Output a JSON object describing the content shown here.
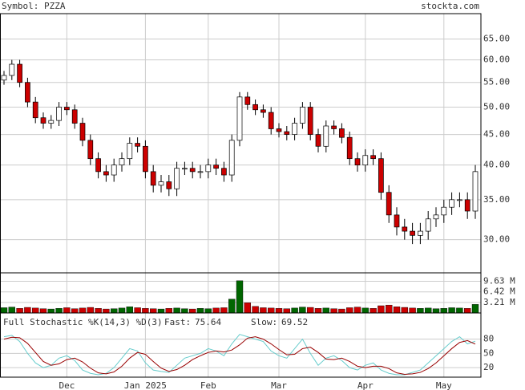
{
  "header": {
    "symbol": "Symbol: PZZA",
    "site": "stockta.com"
  },
  "chart_data": [
    {
      "type": "candlestick",
      "log": true,
      "grid": true,
      "up_color": "#ffffff",
      "down_color": "#cc0000",
      "categories": [
        null,
        null,
        null,
        null,
        null,
        null,
        null,
        null,
        "Dec",
        null,
        null,
        null,
        null,
        null,
        null,
        null,
        null,
        null,
        "Jan 2025",
        null,
        null,
        null,
        null,
        null,
        null,
        null,
        "Feb",
        null,
        null,
        null,
        null,
        null,
        null,
        null,
        null,
        "Mar",
        null,
        null,
        null,
        null,
        null,
        null,
        null,
        null,
        null,
        null,
        "Apr",
        null,
        null,
        null,
        null,
        null,
        null,
        null,
        null,
        null,
        "May",
        null,
        null,
        null,
        null
      ],
      "open": [
        55.5,
        56.5,
        59,
        55,
        51,
        48,
        47,
        47.5,
        50,
        49.5,
        47,
        44,
        41,
        39,
        38.5,
        40,
        41,
        43.5,
        43,
        39,
        37,
        37.5,
        36.5,
        39.5,
        39.5,
        39,
        39,
        40,
        39.5,
        38.5,
        44,
        52,
        50.5,
        49.5,
        49,
        46,
        45.5,
        45,
        47,
        50,
        45,
        43,
        46.5,
        46,
        44.5,
        41,
        40,
        41.5,
        41,
        36,
        33,
        31.5,
        31,
        30.5,
        31,
        32.5,
        33,
        34,
        35,
        35,
        33.5
      ],
      "high": [
        57.5,
        60,
        60,
        56,
        52,
        49,
        48.5,
        51,
        51,
        50.5,
        48,
        45,
        42,
        40,
        41,
        42,
        44.5,
        44.5,
        44,
        40,
        38.5,
        38.5,
        40.5,
        40.5,
        40.5,
        40,
        41,
        41,
        40.5,
        45,
        53,
        53,
        51.5,
        50.5,
        50,
        47,
        46.5,
        48,
        51,
        51,
        46,
        47.5,
        47.5,
        47,
        45.5,
        42,
        42.5,
        42.5,
        42,
        37,
        34,
        32.5,
        32,
        32,
        33.5,
        34,
        35,
        36,
        36,
        36,
        40
      ],
      "low": [
        54.5,
        55.5,
        54,
        50,
        47,
        46,
        46,
        46.5,
        48.5,
        46,
        43,
        40,
        38,
        37.5,
        37.5,
        39,
        40,
        42,
        38,
        36,
        36,
        35.5,
        35.5,
        38.5,
        38,
        38,
        38,
        38.5,
        37.5,
        37.5,
        43,
        49.5,
        48.5,
        48,
        45,
        44.5,
        44,
        44,
        46,
        44,
        42,
        42,
        45,
        43.5,
        40,
        39,
        39,
        40,
        35,
        32,
        30.5,
        30,
        29.5,
        29.5,
        30,
        31.5,
        32,
        33,
        34,
        32.5,
        32.5
      ],
      "close": [
        56.5,
        59,
        55,
        51,
        48,
        47,
        47.5,
        50,
        49.5,
        47,
        44,
        41,
        39,
        38.5,
        40,
        41,
        43.5,
        43,
        39,
        37,
        37.5,
        36.5,
        39.5,
        39.5,
        39,
        39,
        40,
        39.5,
        38.5,
        44,
        52,
        50.5,
        49.5,
        49,
        46,
        45.5,
        45,
        47,
        50,
        45,
        43,
        46.5,
        46,
        44.5,
        41,
        40,
        41.5,
        41,
        36,
        33,
        31.5,
        31,
        30.5,
        31,
        32.5,
        33,
        34,
        35,
        35,
        33.5,
        39
      ],
      "ylim": [
        26.4,
        71.7
      ],
      "yticks": [
        {
          "value": 30,
          "label": "30.00"
        },
        {
          "value": 35,
          "label": "35.00"
        },
        {
          "value": 40,
          "label": "40.00"
        },
        {
          "value": 45,
          "label": "45.00"
        },
        {
          "value": 50,
          "label": "50.00"
        },
        {
          "value": 55,
          "label": "55.00"
        },
        {
          "value": 60,
          "label": "60.00"
        },
        {
          "value": 65,
          "label": "65.00"
        }
      ]
    },
    {
      "type": "bar",
      "up_color": "#006600",
      "down_color": "#cc0000",
      "values": [
        1.6,
        1.8,
        1.4,
        1.7,
        1.5,
        1.3,
        1.2,
        1.4,
        1.6,
        1.3,
        1.5,
        1.7,
        1.4,
        1.2,
        1.3,
        1.5,
        1.9,
        1.6,
        1.4,
        1.3,
        1.2,
        1.4,
        1.5,
        1.3,
        1.2,
        1.4,
        1.3,
        1.5,
        1.6,
        4.2,
        9.8,
        3.1,
        2.0,
        1.6,
        1.5,
        1.4,
        1.3,
        1.5,
        1.8,
        1.7,
        1.4,
        1.5,
        1.3,
        1.2,
        1.6,
        1.8,
        1.5,
        1.4,
        2.2,
        2.4,
        1.9,
        1.7,
        1.5,
        1.4,
        1.5,
        1.3,
        1.4,
        1.6,
        1.5,
        1.4,
        2.6
      ],
      "ylim": [
        0,
        12.2
      ],
      "yticks": [
        {
          "value": 3.21,
          "label": "3.21 M"
        },
        {
          "value": 6.42,
          "label": "6.42 M"
        },
        {
          "value": 9.63,
          "label": "9.63 M"
        }
      ]
    },
    {
      "type": "line",
      "title": "Full Stochastic %K(14,3) %D(3)",
      "series": [
        {
          "name": "Fast:",
          "color": "#66cccc",
          "values": [
            85,
            88,
            75,
            50,
            30,
            20,
            25,
            40,
            45,
            35,
            15,
            8,
            5,
            8,
            20,
            40,
            60,
            55,
            30,
            15,
            12,
            10,
            25,
            40,
            45,
            50,
            60,
            55,
            45,
            70,
            90,
            85,
            80,
            75,
            55,
            45,
            40,
            60,
            80,
            50,
            25,
            40,
            45,
            35,
            20,
            15,
            25,
            30,
            15,
            8,
            5,
            5,
            10,
            15,
            30,
            45,
            60,
            75,
            85,
            70,
            75.64
          ]
        },
        {
          "name": "Slow:",
          "color": "#990000",
          "values": [
            80,
            84,
            83,
            71,
            52,
            33,
            25,
            28,
            37,
            40,
            32,
            19,
            9,
            7,
            11,
            23,
            40,
            52,
            48,
            33,
            19,
            12,
            16,
            25,
            37,
            45,
            52,
            55,
            53,
            57,
            68,
            82,
            85,
            80,
            70,
            58,
            47,
            48,
            60,
            63,
            52,
            38,
            37,
            40,
            33,
            23,
            20,
            23,
            23,
            18,
            9,
            6,
            7,
            10,
            18,
            30,
            45,
            60,
            73,
            77,
            69.52
          ]
        }
      ],
      "ylim": [
        0,
        135
      ],
      "yticks": [
        20,
        50,
        80
      ]
    }
  ]
}
